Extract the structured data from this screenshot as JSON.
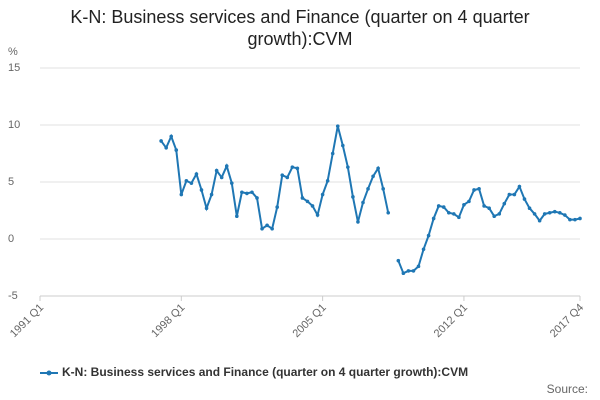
{
  "chart_data": {
    "type": "line",
    "title": "K-N: Business services and Finance (quarter on 4 quarter growth):CVM",
    "y_unit": "%",
    "source": "Source:",
    "categories": [
      "1991 Q1",
      null,
      null,
      null,
      null,
      null,
      null,
      null,
      null,
      null,
      null,
      null,
      null,
      null,
      null,
      null,
      null,
      null,
      null,
      null,
      null,
      null,
      null,
      null,
      null,
      null,
      null,
      null,
      "1998 Q1",
      null,
      null,
      null,
      null,
      null,
      null,
      null,
      null,
      null,
      null,
      null,
      null,
      null,
      null,
      null,
      null,
      null,
      null,
      null,
      null,
      null,
      null,
      null,
      null,
      null,
      null,
      null,
      "2005 Q1",
      null,
      null,
      null,
      null,
      null,
      null,
      null,
      null,
      null,
      null,
      null,
      null,
      null,
      null,
      null,
      null,
      null,
      null,
      null,
      null,
      null,
      null,
      null,
      null,
      null,
      null,
      null,
      "2012 Q1",
      null,
      null,
      null,
      null,
      null,
      null,
      null,
      null,
      null,
      null,
      null,
      null,
      null,
      null,
      null,
      null,
      null,
      null,
      null,
      null,
      null,
      null,
      "2017 Q4"
    ],
    "series": [
      {
        "name": "K-N: Business services and Finance (quarter on 4 quarter growth):CVM",
        "color": "#1f77b4",
        "values": [
          null,
          null,
          null,
          null,
          null,
          null,
          null,
          null,
          null,
          null,
          null,
          null,
          null,
          null,
          null,
          null,
          null,
          null,
          null,
          null,
          null,
          null,
          null,
          null,
          8.6,
          8.0,
          9.0,
          7.8,
          3.9,
          5.1,
          4.9,
          5.7,
          4.3,
          2.7,
          3.9,
          6.0,
          5.4,
          6.4,
          4.9,
          2.0,
          4.1,
          4.0,
          4.1,
          3.6,
          0.9,
          1.2,
          0.9,
          2.8,
          5.6,
          5.4,
          6.3,
          6.2,
          3.6,
          3.3,
          2.9,
          2.1,
          3.9,
          5.1,
          7.5,
          9.9,
          8.2,
          6.3,
          3.7,
          1.5,
          3.2,
          4.4,
          5.5,
          6.2,
          4.4,
          2.3,
          null,
          -1.9,
          -3.0,
          -2.8,
          -2.8,
          -2.4,
          -0.9,
          0.3,
          1.8,
          2.9,
          2.8,
          2.3,
          2.2,
          1.9,
          3.0,
          3.3,
          4.3,
          4.4,
          2.9,
          2.7,
          2.0,
          2.2,
          3.1,
          3.9,
          3.9,
          4.6,
          3.5,
          2.7,
          2.2,
          1.6,
          2.2,
          2.3,
          2.4,
          2.3,
          2.1,
          1.7,
          1.7,
          1.8
        ]
      }
    ],
    "ylim": [
      -5,
      15
    ],
    "yticks": [
      -5,
      0,
      5,
      10,
      15
    ],
    "grid": true,
    "legend": "bottom"
  }
}
